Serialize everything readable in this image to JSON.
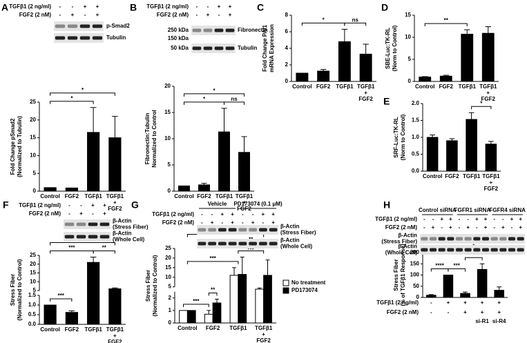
{
  "chart_data": [
    {
      "type": "bar",
      "panel": "A",
      "ylabel": [
        "Fold Change pSmad2",
        "(Normalized to Tubulin)"
      ],
      "categories": [
        "Control",
        "FGF2",
        "TGFβ1",
        "TGFβ1 + FGF2"
      ],
      "values": [
        1,
        0.9,
        16.5,
        15
      ],
      "errors": [
        null,
        null,
        7,
        6
      ],
      "color": "#000000",
      "ylim": [
        0,
        25
      ],
      "yticks": [
        0,
        5,
        10,
        15,
        20,
        25
      ],
      "significance": [
        {
          "text": "*",
          "between": [
            0,
            2
          ]
        },
        {
          "text": "*",
          "between": [
            0,
            3
          ]
        }
      ],
      "blot": {
        "treatments": [
          {
            "label": "TGFβ1 (2 ng/ml)",
            "signs": [
              "-",
              "-",
              "+",
              "+"
            ]
          },
          {
            "label": "FGF2 (2 nM)",
            "signs": [
              "-",
              "+",
              "-",
              "+"
            ]
          }
        ],
        "bands": [
          "p-Smad2",
          "Tubulin"
        ]
      }
    },
    {
      "type": "bar",
      "panel": "B",
      "ylabel": [
        "Fibronectin:Tubulin",
        "Normalized to Control"
      ],
      "categories": [
        "Control",
        "FGF2",
        "TGFβ1",
        "TGFβ1 + FGF2"
      ],
      "values": [
        1,
        1.2,
        11.3,
        7.4
      ],
      "errors": [
        null,
        0.3,
        4.5,
        3
      ],
      "color": "#000000",
      "ylim": [
        0,
        20
      ],
      "yticks": [
        0,
        5,
        10,
        15,
        20
      ],
      "significance": [
        {
          "text": "ns",
          "between": [
            2,
            3
          ]
        },
        {
          "text": "*",
          "between": [
            0,
            2
          ]
        },
        {
          "text": "*",
          "between": [
            0,
            3
          ]
        }
      ],
      "blot": {
        "treatments": [
          {
            "label": "TGFβ1 (2 ng/ml)",
            "signs": [
              "-",
              "-",
              "+",
              "+"
            ]
          },
          {
            "label": "FGF2 (2 nM)",
            "signs": [
              "-",
              "+",
              "-",
              "+"
            ]
          }
        ],
        "bands": [
          "Fibronectin",
          "Tubulin"
        ],
        "markers": [
          "250 kDa",
          "150 kDa",
          "50 kDa"
        ]
      }
    },
    {
      "type": "bar",
      "panel": "C",
      "ylabel": [
        "Fold Change PAI1",
        "mRNA Expression"
      ],
      "categories": [
        "Control",
        "FGF2",
        "TGFβ1",
        "TGFβ1 + FGF2"
      ],
      "values": [
        1,
        1.25,
        4.8,
        3.3
      ],
      "errors": [
        null,
        0.2,
        1.5,
        1.2
      ],
      "color": "#000000",
      "ylim": [
        0,
        8
      ],
      "yticks": [
        0,
        2,
        4,
        6,
        8
      ],
      "significance": [
        {
          "text": "*",
          "between": [
            0,
            2
          ]
        },
        {
          "text": "ns",
          "between": [
            2,
            3
          ]
        }
      ]
    },
    {
      "type": "bar",
      "panel": "D",
      "ylabel": [
        "SBE-Luc:TK-RL",
        "(Norm to Control)"
      ],
      "categories": [
        "Control",
        "FGF2",
        "TGFβ1",
        "TGFβ1 + FGF2"
      ],
      "values": [
        1,
        1.2,
        10.7,
        10.9
      ],
      "errors": [
        0.1,
        0.2,
        1,
        1.5
      ],
      "color": "#000000",
      "ylim": [
        0,
        15
      ],
      "yticks": [
        0,
        5,
        10,
        15
      ],
      "significance": [
        {
          "text": "**",
          "between": [
            0,
            2
          ]
        }
      ]
    },
    {
      "type": "bar",
      "panel": "E",
      "ylabel": [
        "SRF-Luc:TK-RL",
        "(Norm to Control)"
      ],
      "categories": [
        "Control",
        "FGF2",
        "TGFβ1",
        "TGFβ1 + FGF2"
      ],
      "values": [
        1.0,
        0.9,
        1.53,
        0.8
      ],
      "errors": [
        0.07,
        0.06,
        0.2,
        0.08
      ],
      "color": "#000000",
      "ylim": [
        0,
        2
      ],
      "yticks": [
        {
          "value": 0,
          "label": "0.0"
        },
        {
          "value": 0.5,
          "label": "0.5"
        },
        {
          "value": 1,
          "label": "1.0"
        },
        {
          "value": 1.5,
          "label": "1.5"
        },
        {
          "value": 2,
          "label": "2.0"
        }
      ],
      "significance": [
        {
          "text": "*",
          "between": [
            2,
            3
          ]
        }
      ]
    },
    {
      "type": "bar",
      "panel": "F",
      "ylabel": [
        "Stress Fiber",
        "(Normalized to Control)"
      ],
      "categories": [
        "Control",
        "FGF2",
        "TGFβ1",
        "TGFβ1 + FGF2"
      ],
      "values": [
        1,
        0.62,
        21,
        6
      ],
      "errors": [
        null,
        0.08,
        3,
        0.5
      ],
      "color": "#000000",
      "ylim": [
        0,
        25
      ],
      "ybreak": [
        1.5,
        5
      ],
      "yticks": [
        {
          "value": 0,
          "label": "0.0"
        },
        {
          "value": 0.5,
          "label": "0.5"
        },
        {
          "value": 1,
          "label": "1.0"
        },
        {
          "value": 1.5,
          "label": "1.5"
        },
        5,
        10,
        15,
        20,
        25
      ],
      "significance": [
        {
          "text": "***",
          "between": [
            0,
            1
          ]
        },
        {
          "text": "**",
          "between": [
            2,
            3
          ]
        },
        {
          "text": "***",
          "between": [
            0,
            2
          ]
        },
        {
          "text": "**",
          "between": [
            0,
            3
          ]
        }
      ],
      "blot": {
        "treatments": [
          {
            "label": "TGFβ1 (2 ng/ml)",
            "signs": [
              "-",
              "-",
              "+",
              "+"
            ]
          },
          {
            "label": "FGF2 (2 nM)",
            "signs": [
              "-",
              "+",
              "-",
              "+"
            ]
          }
        ],
        "bands": [
          "β-Actin (Stress Fiber)",
          "β-Actin (Whole Cell)"
        ]
      }
    },
    {
      "type": "grouped-bar",
      "panel": "G",
      "ylabel": [
        "Stress Fiber",
        "(Normalized to Control)"
      ],
      "categories": [
        "Control",
        "FGF2",
        "TGFβ1",
        "TGFβ1 + FGF2"
      ],
      "series": [
        {
          "name": "No treatment",
          "color": "#ffffff",
          "values": [
            1,
            0.7,
            11,
            3.8
          ],
          "errors": [
            null,
            0.3,
            4,
            0.6
          ]
        },
        {
          "name": "PD173074",
          "color": "#000000",
          "values": [
            1,
            1.6,
            11.5,
            11
          ],
          "errors": [
            null,
            0.3,
            9,
            8
          ]
        }
      ],
      "ylim": [
        0,
        25
      ],
      "ybreak": [
        2.5,
        5
      ],
      "yticks": [
        0,
        1,
        2,
        5,
        10,
        15,
        20,
        25
      ],
      "significance": [
        {
          "text": "***",
          "between": [
            [
              0,
              0
            ],
            [
              1,
              0
            ]
          ]
        },
        {
          "text": "**",
          "between": [
            [
              1,
              0
            ],
            [
              1,
              1
            ]
          ]
        },
        {
          "text": "ns",
          "between": [
            2,
            3
          ]
        },
        {
          "text": "**",
          "between": [
            2,
            3
          ]
        },
        {
          "text": "***",
          "between": [
            0,
            2
          ]
        },
        {
          "text": "**",
          "between": [
            0,
            3
          ]
        }
      ],
      "blot": {
        "groups": [
          "Vehicle",
          "PD173074 (0.1 μM)"
        ],
        "treatments": [
          {
            "label": "TGFβ1 (2 ng/ml)",
            "signs": [
              "-",
              "-",
              "+",
              "+",
              "-",
              "-",
              "+",
              "+"
            ]
          },
          {
            "label": "FGF2 (2 nM)",
            "signs": [
              "-",
              "+",
              "-",
              "+",
              "-",
              "+",
              "-",
              "+"
            ]
          }
        ],
        "bands": [
          "β-Actin (Stress Fiber)",
          "β-Actin (Whole Cell)"
        ]
      }
    },
    {
      "type": "bar",
      "panel": "H",
      "ylabel": [
        "Stress Fiber",
        "(% of TGFβ1 Response)"
      ],
      "categories": [
        null,
        null,
        null,
        null,
        null
      ],
      "values": [
        10,
        100,
        18,
        125,
        32
      ],
      "errors": [
        3,
        null,
        6,
        25,
        15
      ],
      "color": "#000000",
      "ylim": [
        0,
        200
      ],
      "yticks": [
        0,
        50,
        100,
        150,
        200
      ],
      "significance": [
        {
          "text": "****",
          "between": [
            0,
            1
          ]
        },
        {
          "text": "***",
          "between": [
            1,
            2
          ]
        },
        {
          "text": "*",
          "between": [
            2,
            3
          ]
        },
        {
          "text": "*",
          "between": [
            1,
            4
          ]
        }
      ],
      "treatment_rows": [
        {
          "label": "TGFβ1 (2 ng/ml)",
          "signs": [
            "-",
            "+",
            "+",
            "+",
            "+"
          ]
        },
        {
          "label": "FGF2 (2 nM)",
          "signs": [
            "-",
            "-",
            "+",
            "+",
            "+"
          ]
        },
        {
          "signs": [
            null,
            null,
            null,
            "si-R1",
            "si-R4"
          ]
        }
      ],
      "blot": {
        "groups": [
          "Control siRNA",
          "FGFR1 siRNA",
          "FGFR4 siRNA"
        ],
        "treatments": [
          {
            "label": "TGFβ1 (2 ng/ml)",
            "signs": [
              "-",
              "-",
              "+",
              "+",
              "-",
              "-",
              "+",
              "+",
              "-",
              "-",
              "+",
              "+"
            ]
          },
          {
            "label": "FGF2 (2 nM)",
            "signs": [
              "-",
              "+",
              "-",
              "+",
              "-",
              "+",
              "-",
              "+",
              "-",
              "+",
              "-",
              "+"
            ]
          }
        ],
        "bands": [
          "β-Actin (Stress Fiber)",
          "β-Actin (Whole Cell)"
        ]
      }
    }
  ]
}
